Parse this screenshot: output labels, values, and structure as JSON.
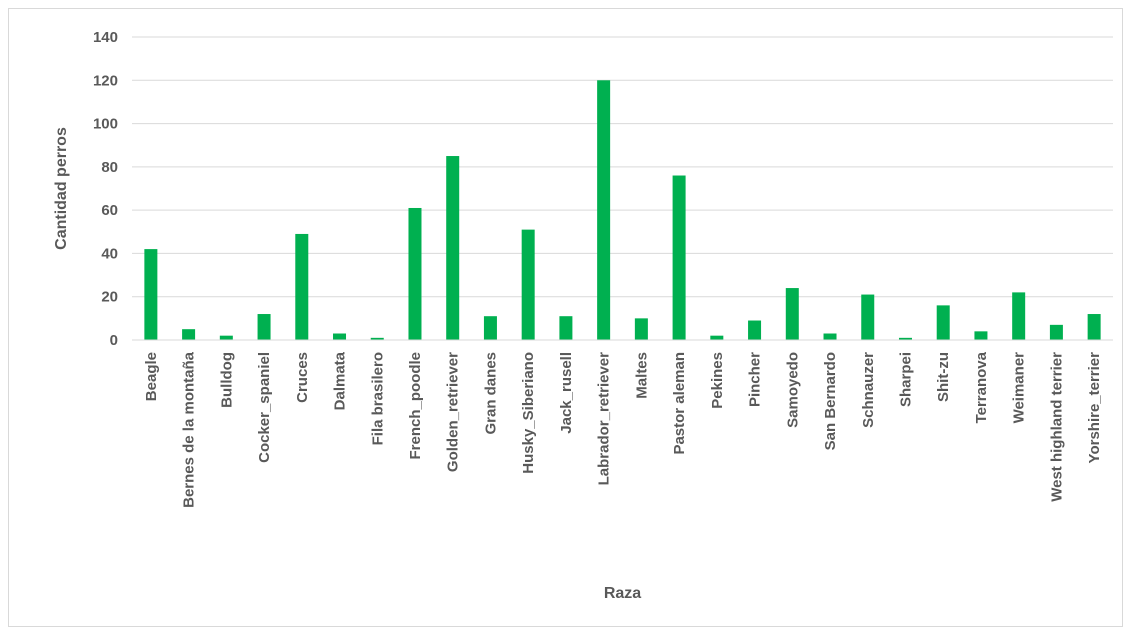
{
  "chart_data": {
    "type": "bar",
    "title": "",
    "xlabel": "Raza",
    "ylabel": "Cantidad perros",
    "ylim": [
      0,
      140
    ],
    "yticks": [
      0,
      20,
      40,
      60,
      80,
      100,
      120,
      140
    ],
    "grid": true,
    "legend": "none",
    "bar_color": "#00b050",
    "categories": [
      "Beagle",
      "Bernes de la montaña",
      "Bulldog",
      "Cocker_spaniel",
      "Cruces",
      "Dalmata",
      "Fila brasilero",
      "French_poodle",
      "Golden_retriever",
      "Gran danes",
      "Husky_Siberiano",
      "Jack_rusell",
      "Labrador_retriever",
      "Maltes",
      "Pastor aleman",
      "Pekines",
      "Pincher",
      "Samoyedo",
      "San Bernardo",
      "Schnauzer",
      "Sharpei",
      "Shit-zu",
      "Terranova",
      "Weimaner",
      "West highland terrier",
      "Yorshire_terrier"
    ],
    "values": [
      42,
      5,
      2,
      12,
      49,
      3,
      1,
      61,
      85,
      11,
      51,
      11,
      120,
      10,
      76,
      2,
      9,
      24,
      3,
      21,
      1,
      16,
      4,
      22,
      7,
      12
    ]
  }
}
